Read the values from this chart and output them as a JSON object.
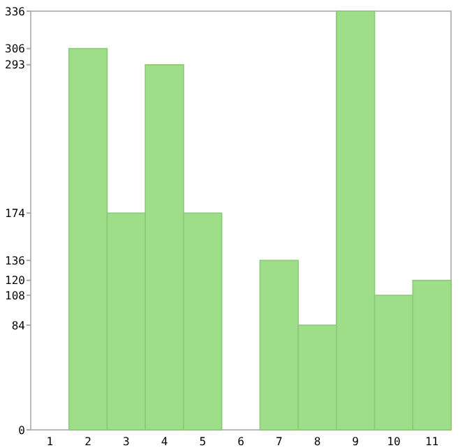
{
  "chart_data": {
    "type": "bar",
    "categories": [
      "1",
      "2",
      "3",
      "4",
      "5",
      "6",
      "7",
      "8",
      "9",
      "10",
      "11"
    ],
    "values": [
      0,
      306,
      174,
      293,
      174,
      0,
      136,
      84,
      336,
      108,
      120
    ],
    "color": "#9ede88",
    "ylim": [
      0,
      336
    ],
    "yticks": [
      0,
      84,
      108,
      120,
      136,
      174,
      293,
      306,
      336
    ],
    "grid": false
  }
}
